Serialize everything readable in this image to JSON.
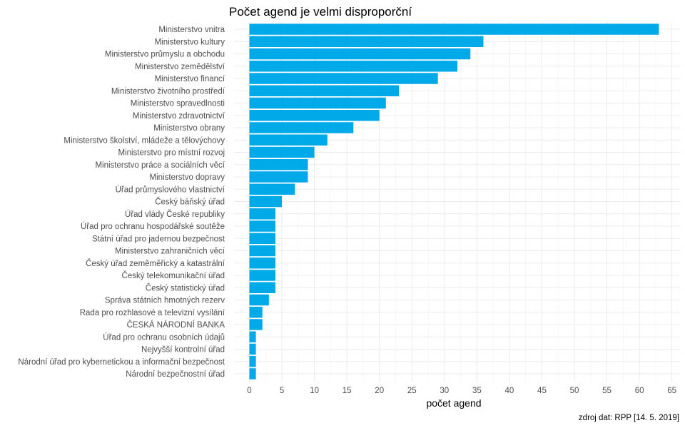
{
  "chart_data": {
    "type": "bar",
    "orientation": "horizontal",
    "title": "Počet agend je velmi disproporční",
    "xlabel": "počet agend",
    "ylabel": "",
    "caption": "zdroj dat: RPP [14. 5. 2019]",
    "bar_color": "#00a9e8",
    "grid": true,
    "xlim": [
      -2.3,
      66.5
    ],
    "xticks": [
      0,
      5,
      10,
      15,
      20,
      25,
      30,
      35,
      40,
      45,
      50,
      55,
      60,
      65
    ],
    "categories": [
      "Ministerstvo vnitra",
      "Ministerstvo kultury",
      "Ministerstvo průmyslu a obchodu",
      "Ministerstvo zemědělství",
      "Ministerstvo financí",
      "Ministerstvo životního prostředí",
      "Ministerstvo spravedlnosti",
      "Ministerstvo zdravotnictví",
      "Ministerstvo obrany",
      "Ministerstvo školství, mládeže a tělovýchovy",
      "Ministerstvo pro místní rozvoj",
      "Ministerstvo práce a sociálních věcí",
      "Ministerstvo dopravy",
      "Úřad průmyslového vlastnictví",
      "Český báňský úřad",
      "Úřad vlády České republiky",
      "Úřad pro ochranu hospodářské soutěže",
      "Státní úřad pro jadernou bezpečnost",
      "Ministerstvo zahraničních věcí",
      "Český úřad zeměměřický a katastrální",
      "Český telekomunikační úřad",
      "Český statistický úřad",
      "Správa státních hmotných rezerv",
      "Rada pro rozhlasové a televizní vysílání",
      "ČESKÁ NÁRODNÍ BANKA",
      "Úřad pro ochranu osobních údajů",
      "Nejvyšší kontrolní úřad",
      "Národní úřad pro kybernetickou a informační bezpečnost",
      "Národní bezpečnostní úřad"
    ],
    "values": [
      63,
      36,
      34,
      32,
      29,
      23,
      21,
      20,
      16,
      12,
      10,
      9,
      9,
      7,
      5,
      4,
      4,
      4,
      4,
      4,
      4,
      4,
      3,
      2,
      2,
      1,
      1,
      1,
      1
    ]
  }
}
